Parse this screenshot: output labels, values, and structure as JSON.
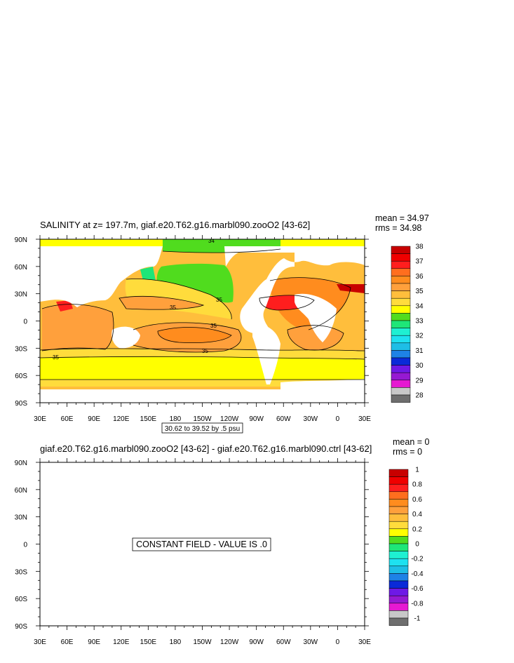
{
  "colors": {
    "levels": [
      "#6e6e6e",
      "#c8c8c8",
      "#e619d2",
      "#9619d2",
      "#6e19e6",
      "#0a2ad8",
      "#1e82e6",
      "#1ebee6",
      "#1ee1f0",
      "#1ef0d2",
      "#1ee678",
      "#50dc1e",
      "#ffff00",
      "#ffdc3c",
      "#ffbe3c",
      "#ffa03c",
      "#ff8c1e",
      "#ff6e1e",
      "#ff1e1e",
      "#f00000",
      "#c80000"
    ],
    "land": "#ffffff",
    "contour": "#000000"
  },
  "chart_data": [
    {
      "type": "heatmap",
      "title": "SALINITY at z= 197.7m, giaf.e20.T62.g16.marbl090.zooO2 [43-62]",
      "stats": {
        "mean": "mean = 34.97",
        "rms": "rms = 34.98"
      },
      "x_ticks": [
        "30E",
        "60E",
        "90E",
        "120E",
        "150E",
        "180",
        "150W",
        "120W",
        "90W",
        "60W",
        "30W",
        "0",
        "30E"
      ],
      "y_ticks": [
        "90N",
        "60N",
        "30N",
        "0",
        "30S",
        "60S",
        "90S"
      ],
      "xlim": [
        30,
        390
      ],
      "ylim": [
        -90,
        90
      ],
      "colorbar": {
        "labels": [
          "38",
          "37",
          "36",
          "35",
          "34",
          "33",
          "32",
          "31",
          "30",
          "29",
          "28"
        ],
        "values": [
          38,
          37,
          36,
          35,
          34,
          33,
          32,
          31,
          30,
          29,
          28
        ]
      },
      "contour_note": "30.62 to 39.52 by .5 psu",
      "contour_labels": [
        "34",
        "35",
        "35",
        "35",
        "35",
        "35"
      ]
    },
    {
      "type": "heatmap",
      "title": "giaf.e20.T62.g16.marbl090.zooO2 [43-62] - giaf.e20.T62.g16.marbl090.ctrl [43-62]",
      "stats": {
        "mean": "mean = 0",
        "rms": "rms = 0"
      },
      "x_ticks": [
        "30E",
        "60E",
        "90E",
        "120E",
        "150E",
        "180",
        "150W",
        "120W",
        "90W",
        "60W",
        "30W",
        "0",
        "30E"
      ],
      "y_ticks": [
        "90N",
        "60N",
        "30N",
        "0",
        "30S",
        "60S",
        "90S"
      ],
      "xlim": [
        30,
        390
      ],
      "ylim": [
        -90,
        90
      ],
      "colorbar": {
        "labels": [
          "1",
          "0.8",
          "0.6",
          "0.4",
          "0.2",
          "0",
          "-0.2",
          "-0.4",
          "-0.6",
          "-0.8",
          "-1"
        ],
        "values": [
          1,
          0.8,
          0.6,
          0.4,
          0.2,
          0,
          -0.2,
          -0.4,
          -0.6,
          -0.8,
          -1
        ]
      },
      "message": "CONSTANT FIELD - VALUE IS .0",
      "value": 0
    }
  ]
}
